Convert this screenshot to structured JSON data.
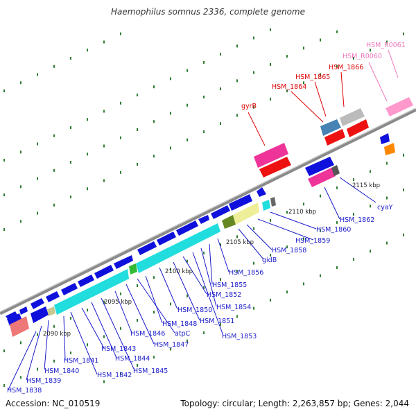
{
  "title": "Haemophilus somnus 2336, complete genome",
  "footer": {
    "accession": "Accession: NC_010519",
    "meta": "Topology: circular; Length: 2,263,857 bp; Genes: 2,044"
  },
  "colors": {
    "axis": "#9a9a9a",
    "tick": "#2e7d32",
    "cds": "#1010dd",
    "cyan": "#22dddd",
    "pink": "#ee3399",
    "red": "#ee1111",
    "blue_label": "#1a1acc",
    "red_label": "#dd0000",
    "pink_label": "#ee77bb"
  },
  "kbp_labels": [
    "2090 kbp",
    "2095 kbp",
    "2100 kbp",
    "2105 kbp",
    "2110 kbp",
    "2115 kbp"
  ],
  "gene_labels": [
    {
      "id": "g1",
      "text": "HSM_1838",
      "color": "blue"
    },
    {
      "id": "g2",
      "text": "HSM_1839",
      "color": "blue"
    },
    {
      "id": "g3",
      "text": "HSM_1840",
      "color": "blue"
    },
    {
      "id": "g4",
      "text": "HSM_1841",
      "color": "blue"
    },
    {
      "id": "g5",
      "text": "HSM_1842",
      "color": "blue"
    },
    {
      "id": "g6",
      "text": "HSM_1843",
      "color": "blue"
    },
    {
      "id": "g7",
      "text": "HSM_1844",
      "color": "blue"
    },
    {
      "id": "g8",
      "text": "HSM_1845",
      "color": "blue"
    },
    {
      "id": "g9",
      "text": "HSM_1846",
      "color": "blue"
    },
    {
      "id": "g10",
      "text": "HSM_1847",
      "color": "blue"
    },
    {
      "id": "g11",
      "text": "atpC",
      "color": "blue"
    },
    {
      "id": "g12",
      "text": "HSM_1848",
      "color": "blue"
    },
    {
      "id": "g13",
      "text": "HSM_1850",
      "color": "blue"
    },
    {
      "id": "g14",
      "text": "HSM_1851",
      "color": "blue"
    },
    {
      "id": "g15",
      "text": "HSM_1852",
      "color": "blue"
    },
    {
      "id": "g16",
      "text": "HSM_1853",
      "color": "blue"
    },
    {
      "id": "g17",
      "text": "HSM_1854",
      "color": "blue"
    },
    {
      "id": "g18",
      "text": "HSM_1855",
      "color": "blue"
    },
    {
      "id": "g19",
      "text": "HSM_1856",
      "color": "blue"
    },
    {
      "id": "g20",
      "text": "gidB",
      "color": "blue"
    },
    {
      "id": "g21",
      "text": "HSM_1858",
      "color": "blue"
    },
    {
      "id": "g22",
      "text": "HSM_1859",
      "color": "blue"
    },
    {
      "id": "g23",
      "text": "HSM_1860",
      "color": "blue"
    },
    {
      "id": "g24",
      "text": "HSM_1862",
      "color": "blue"
    },
    {
      "id": "g25",
      "text": "cyaY",
      "color": "blue"
    },
    {
      "id": "g26",
      "text": "gyrB",
      "color": "red"
    },
    {
      "id": "g27",
      "text": "HSM_1864",
      "color": "red"
    },
    {
      "id": "g28",
      "text": "HSM_1865",
      "color": "red"
    },
    {
      "id": "g29",
      "text": "HSM_1866",
      "color": "red"
    },
    {
      "id": "g30",
      "text": "HSM_R0060",
      "color": "pink"
    },
    {
      "id": "g31",
      "text": "HSM_R0061",
      "color": "pink"
    }
  ]
}
